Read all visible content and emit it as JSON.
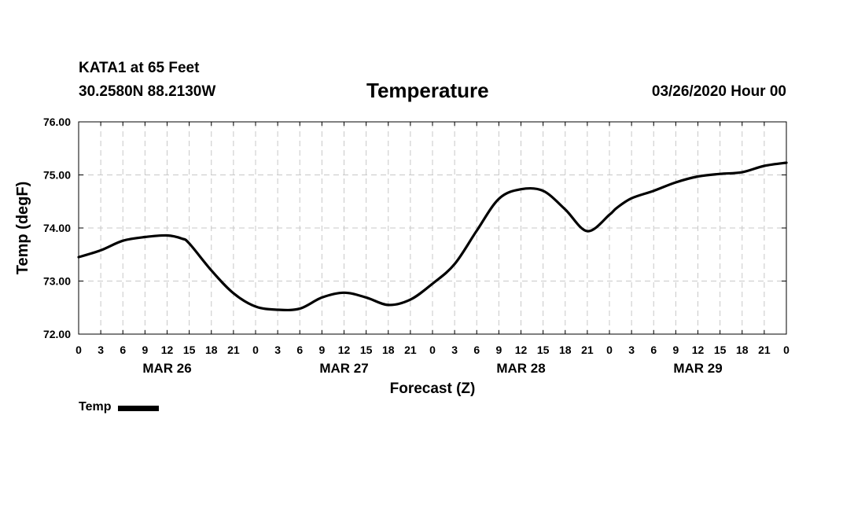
{
  "header": {
    "station": "KATA1 at 65 Feet",
    "coords": "30.2580N 88.2130W",
    "run_time": "03/26/2020 Hour 00"
  },
  "chart_data": {
    "type": "line",
    "title": "Temperature",
    "xlabel": "Forecast (Z)",
    "ylabel": "Temp (degF)",
    "ylim": [
      72.0,
      76.0
    ],
    "yticks": [
      "72.00",
      "73.00",
      "74.00",
      "75.00",
      "76.00"
    ],
    "xlim_hours": [
      0,
      96
    ],
    "xtick_labels": [
      "0",
      "3",
      "6",
      "9",
      "12",
      "15",
      "18",
      "21",
      "0",
      "3",
      "6",
      "9",
      "12",
      "15",
      "18",
      "21",
      "0",
      "3",
      "6",
      "9",
      "12",
      "15",
      "18",
      "21",
      "0",
      "3",
      "6",
      "9",
      "12",
      "15",
      "18",
      "21",
      "0"
    ],
    "day_labels": [
      "MAR 26",
      "MAR 27",
      "MAR 28",
      "MAR 29"
    ],
    "grid": true,
    "legend_position": "bottom-left",
    "series": [
      {
        "name": "Temp",
        "color": "#000000",
        "x": [
          0,
          3,
          6,
          9,
          12,
          14,
          15,
          18,
          21,
          24,
          27,
          30,
          33,
          36,
          39,
          42,
          45,
          48,
          51,
          54,
          57,
          60,
          63,
          66,
          69,
          72,
          73,
          75,
          78,
          81,
          84,
          87,
          90,
          93,
          96
        ],
        "values": [
          73.45,
          73.58,
          73.76,
          73.83,
          73.86,
          73.8,
          73.71,
          73.2,
          72.77,
          72.52,
          72.46,
          72.48,
          72.69,
          72.78,
          72.69,
          72.55,
          72.65,
          72.95,
          73.32,
          73.95,
          74.55,
          74.73,
          74.7,
          74.35,
          73.94,
          74.25,
          74.38,
          74.56,
          74.7,
          74.86,
          74.97,
          75.02,
          75.05,
          75.17,
          75.23
        ]
      }
    ]
  },
  "legend": {
    "label": "Temp"
  }
}
